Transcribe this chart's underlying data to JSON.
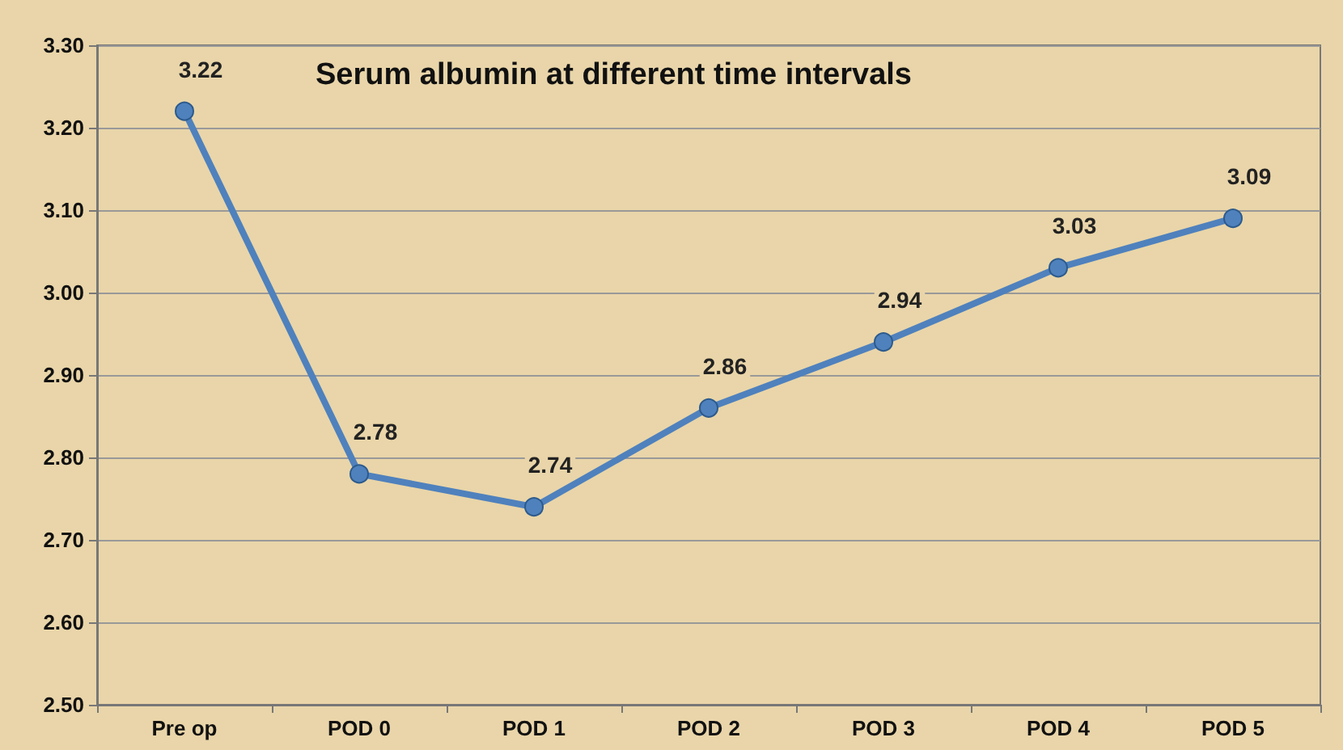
{
  "chart_data": {
    "type": "line",
    "title": "Serum albumin at different time intervals",
    "categories": [
      "Pre op",
      "POD 0",
      "POD 1",
      "POD 2",
      "POD 3",
      "POD 4",
      "POD 5"
    ],
    "series": [
      {
        "color": "#4f81bd",
        "values": [
          3.22,
          2.78,
          2.74,
          2.86,
          2.94,
          3.03,
          3.09
        ]
      }
    ],
    "ylim": [
      2.5,
      3.3
    ],
    "yticks": [
      {
        "value": 2.5,
        "label": "2.50"
      },
      {
        "value": 2.6,
        "label": "2.60"
      },
      {
        "value": 2.7,
        "label": "2.70"
      },
      {
        "value": 2.8,
        "label": "2.80"
      },
      {
        "value": 2.9,
        "label": "2.90"
      },
      {
        "value": 3.0,
        "label": "3.00"
      },
      {
        "value": 3.1,
        "label": "3.10"
      },
      {
        "value": 3.2,
        "label": "3.20"
      },
      {
        "value": 3.3,
        "label": "3.30"
      }
    ],
    "grid": "y",
    "marker": "circle",
    "line_style": "solid",
    "data_labels": true
  }
}
